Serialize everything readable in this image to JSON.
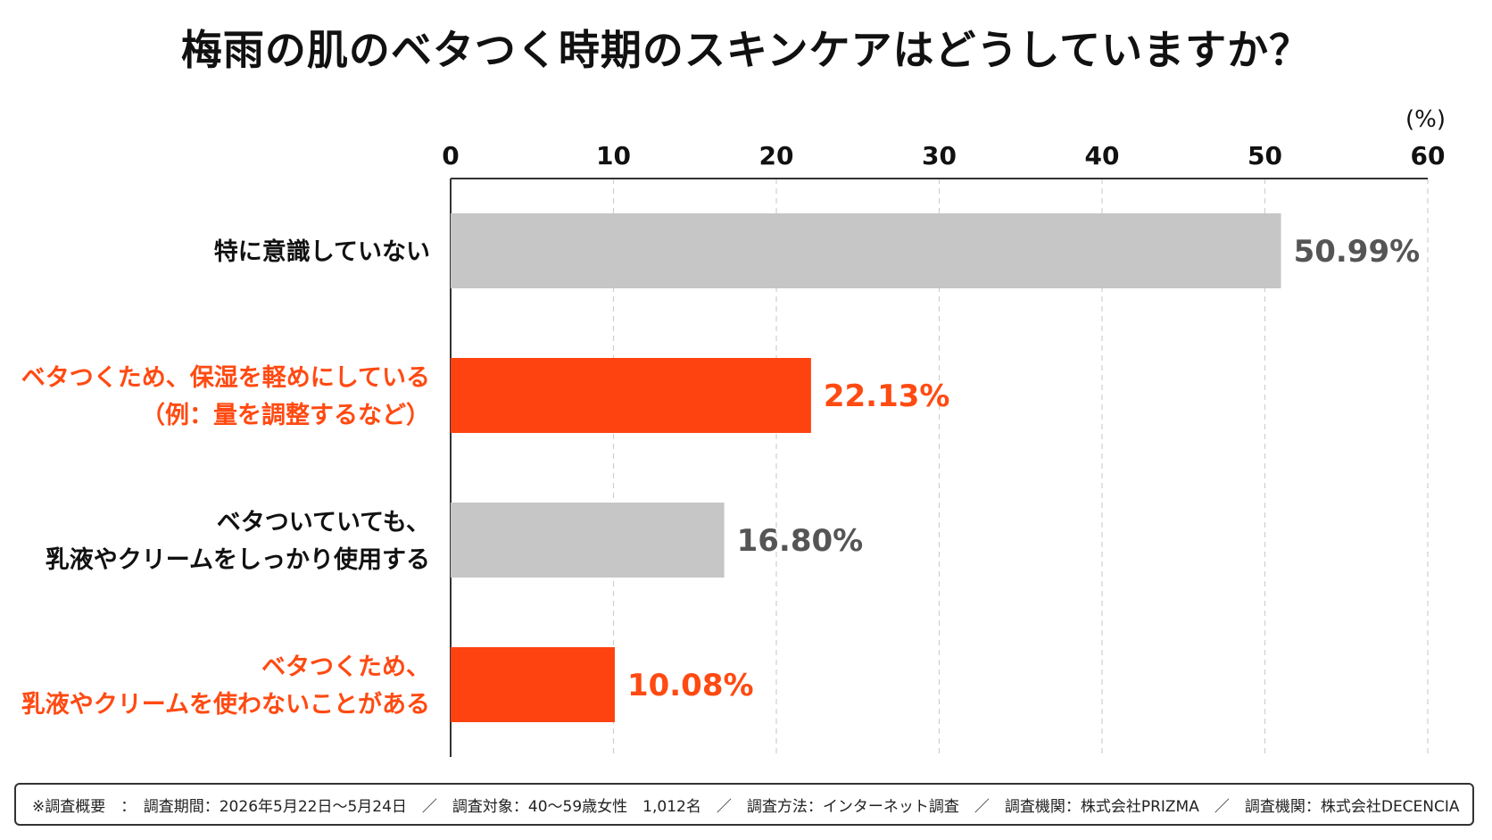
{
  "chart_data": {
    "type": "bar",
    "orientation": "horizontal",
    "title": "梅雨の肌のベタつく時期のスキンケアはどうしていますか？",
    "unit_label": "(%)",
    "xlim": [
      0,
      60
    ],
    "ticks": [
      "0",
      "10",
      "20",
      "30",
      "40",
      "50",
      "60"
    ],
    "grid": true,
    "categories": [
      [
        "特に意識していない"
      ],
      [
        "ベタつくため、保湿を軽めにしている",
        "（例：量を調整するなど）"
      ],
      [
        "ベタついていても、",
        "乳液やクリームをしっかり使用する"
      ],
      [
        "ベタつくため、",
        "乳液やクリームを使わないことがある"
      ]
    ],
    "values": [
      50.99,
      22.13,
      16.8,
      10.08
    ],
    "value_labels": [
      "50.99%",
      "22.13%",
      "16.80%",
      "10.08%"
    ],
    "highlight": [
      false,
      true,
      false,
      true
    ],
    "colors": {
      "bar_default": "#c6c6c6",
      "bar_highlight": "#fe4310",
      "label_default": "#111111",
      "label_highlight": "#ff4a12",
      "value_default": "#555555",
      "value_highlight": "#ff4a12"
    }
  },
  "footer": {
    "text": "※調査概要　：　調査期間：2026年5月22日〜5月24日　／　調査対象：40〜59歳女性　1,012名　／　調査方法：インターネット調査　／　調査機関：株式会社PRIZMA　／　調査機関：株式会社DECENCIA"
  }
}
